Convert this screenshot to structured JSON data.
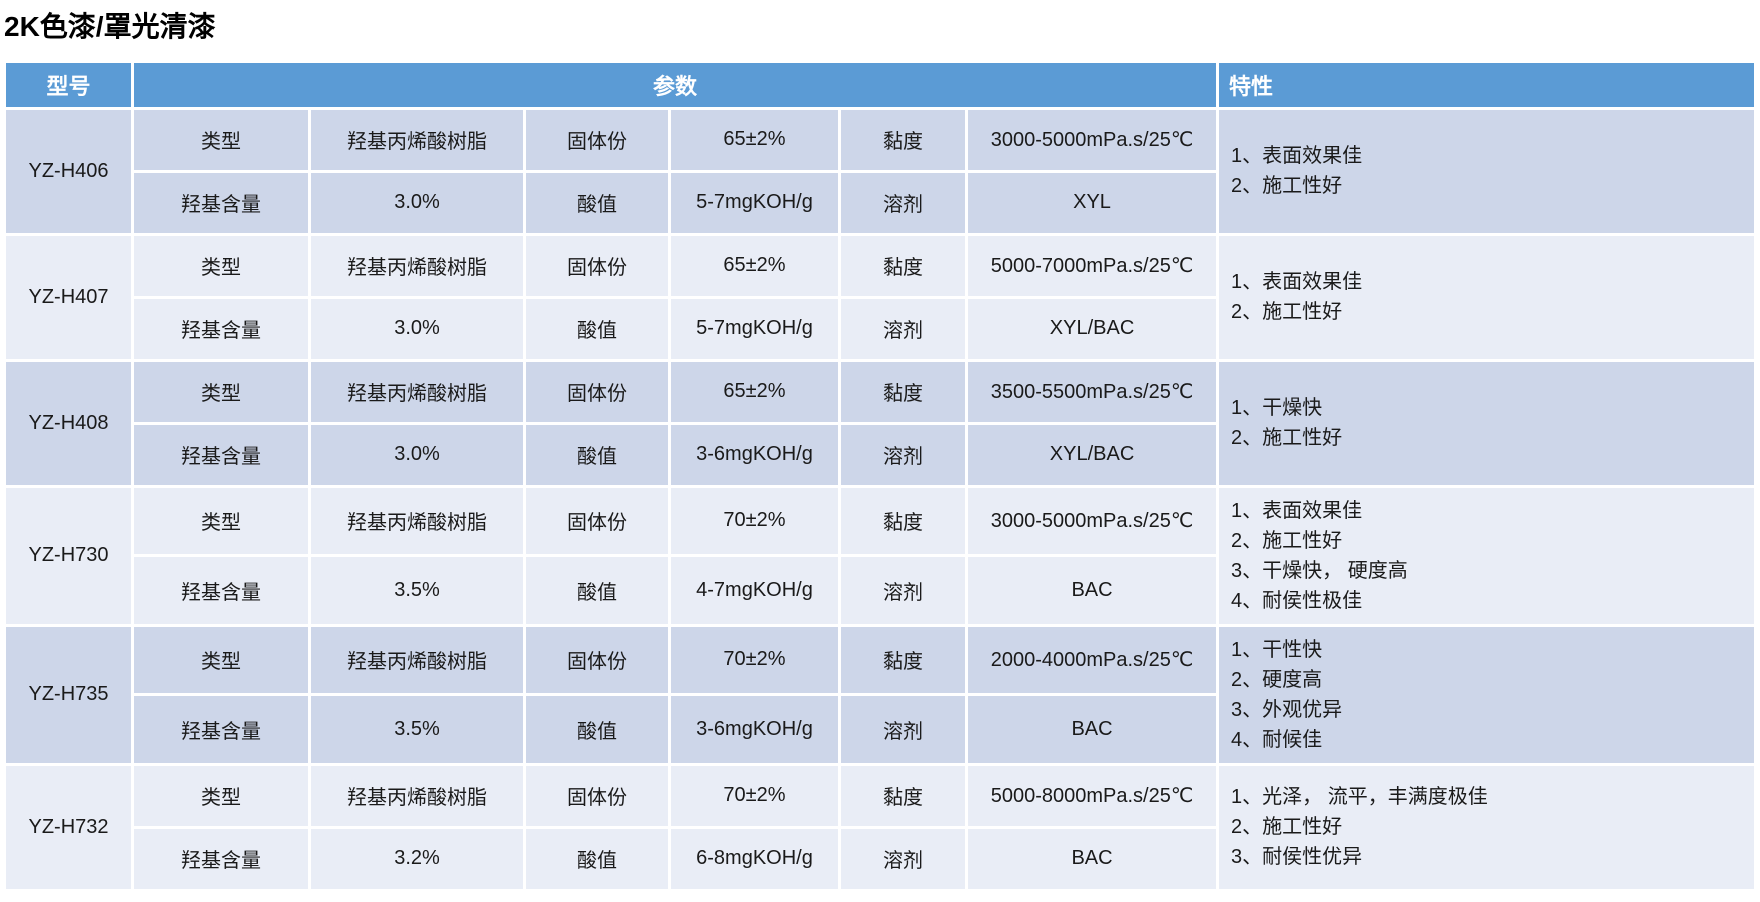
{
  "page": {
    "title": "2K色漆/罩光清漆"
  },
  "table": {
    "headers": {
      "model": "型号",
      "params": "参数",
      "features": "特性"
    },
    "colors": {
      "header_bg": "#5b9bd5",
      "header_text": "#ffffff",
      "band_dark": "#cdd6e9",
      "band_light": "#e9edf6",
      "grid": "#ffffff",
      "text": "#1a1a1a"
    },
    "rows": [
      {
        "model": "YZ-H406",
        "line1": {
          "l1": "类型",
          "v1": "羟基丙烯酸树脂",
          "l2": "固体份",
          "v2": "65±2%",
          "l3": "黏度",
          "v3": "3000-5000mPa.s/25℃"
        },
        "line2": {
          "l1": "羟基含量",
          "v1": "3.0%",
          "l2": "酸值",
          "v2": "5-7mgKOH/g",
          "l3": "溶剂",
          "v3": "XYL"
        },
        "features": [
          "1、表面效果佳",
          "2、施工性好"
        ]
      },
      {
        "model": "YZ-H407",
        "line1": {
          "l1": "类型",
          "v1": "羟基丙烯酸树脂",
          "l2": "固体份",
          "v2": "65±2%",
          "l3": "黏度",
          "v3": "5000-7000mPa.s/25℃"
        },
        "line2": {
          "l1": "羟基含量",
          "v1": "3.0%",
          "l2": "酸值",
          "v2": "5-7mgKOH/g",
          "l3": "溶剂",
          "v3": "XYL/BAC"
        },
        "features": [
          "1、表面效果佳",
          "2、施工性好"
        ]
      },
      {
        "model": "YZ-H408",
        "line1": {
          "l1": "类型",
          "v1": "羟基丙烯酸树脂",
          "l2": "固体份",
          "v2": "65±2%",
          "l3": "黏度",
          "v3": "3500-5500mPa.s/25℃"
        },
        "line2": {
          "l1": "羟基含量",
          "v1": "3.0%",
          "l2": "酸值",
          "v2": "3-6mgKOH/g",
          "l3": "溶剂",
          "v3": "XYL/BAC"
        },
        "features": [
          "1、干燥快",
          "2、施工性好"
        ]
      },
      {
        "model": "YZ-H730",
        "line1": {
          "l1": "类型",
          "v1": "羟基丙烯酸树脂",
          "l2": "固体份",
          "v2": "70±2%",
          "l3": "黏度",
          "v3": "3000-5000mPa.s/25℃"
        },
        "line2": {
          "l1": "羟基含量",
          "v1": "3.5%",
          "l2": "酸值",
          "v2": "4-7mgKOH/g",
          "l3": "溶剂",
          "v3": "BAC"
        },
        "features": [
          "1、表面效果佳",
          "2、施工性好",
          "3、干燥快， 硬度高",
          "4、耐侯性极佳"
        ]
      },
      {
        "model": "YZ-H735",
        "line1": {
          "l1": "类型",
          "v1": "羟基丙烯酸树脂",
          "l2": "固体份",
          "v2": "70±2%",
          "l3": "黏度",
          "v3": "2000-4000mPa.s/25℃"
        },
        "line2": {
          "l1": "羟基含量",
          "v1": "3.5%",
          "l2": "酸值",
          "v2": "3-6mgKOH/g",
          "l3": "溶剂",
          "v3": "BAC"
        },
        "features": [
          "1、干性快",
          "2、硬度高",
          "3、外观优异",
          "4、耐候佳"
        ]
      },
      {
        "model": "YZ-H732",
        "line1": {
          "l1": "类型",
          "v1": "羟基丙烯酸树脂",
          "l2": "固体份",
          "v2": "70±2%",
          "l3": "黏度",
          "v3": "5000-8000mPa.s/25℃"
        },
        "line2": {
          "l1": "羟基含量",
          "v1": "3.2%",
          "l2": "酸值",
          "v2": "6-8mgKOH/g",
          "l3": "溶剂",
          "v3": "BAC"
        },
        "features": [
          "1、光泽， 流平，丰满度极佳",
          "2、施工性好",
          "3、耐侯性优异"
        ]
      }
    ]
  }
}
